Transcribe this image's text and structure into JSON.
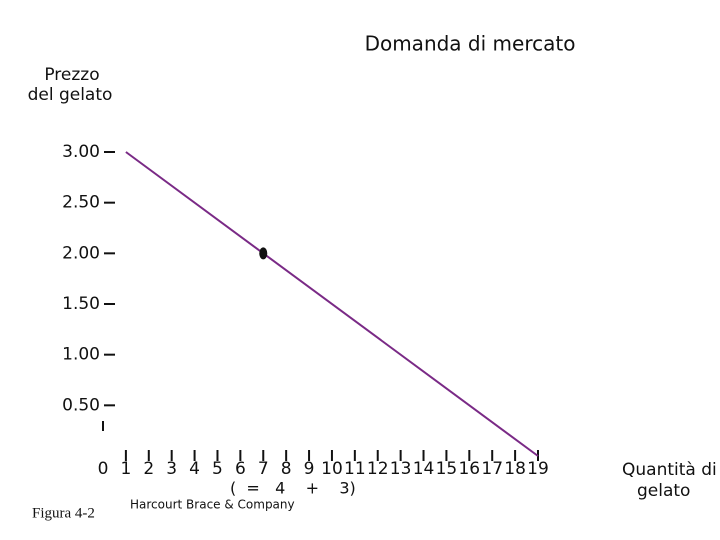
{
  "chart_data": {
    "type": "line",
    "title": "Domanda di mercato",
    "y_label": [
      "Prezzo",
      "del gelato"
    ],
    "x_label": [
      "Quantità di",
      "gelato"
    ],
    "annotation": "(  =   4    +    3)",
    "figure_label": "Figura 4-2",
    "credit": "Harcourt Brace & Company",
    "xlim": [
      0,
      19
    ],
    "ylim": [
      0,
      3
    ],
    "xticks": [
      0,
      1,
      2,
      3,
      4,
      5,
      6,
      7,
      8,
      9,
      10,
      11,
      12,
      13,
      14,
      15,
      16,
      17,
      18,
      19
    ],
    "yticks": [
      {
        "value": 0.5,
        "label": "0.50"
      },
      {
        "value": 1,
        "label": "1.00"
      },
      {
        "value": 1.5,
        "label": "1.50"
      },
      {
        "value": 2,
        "label": "2.00"
      },
      {
        "value": 2.5,
        "label": "2.50"
      },
      {
        "value": 3,
        "label": "3.00"
      }
    ],
    "series": [
      {
        "color": "#7a2a86",
        "x": [
          1,
          19
        ],
        "values": [
          3,
          0
        ]
      }
    ],
    "point": {
      "x": 7,
      "value": 2,
      "color": "#111111"
    }
  }
}
